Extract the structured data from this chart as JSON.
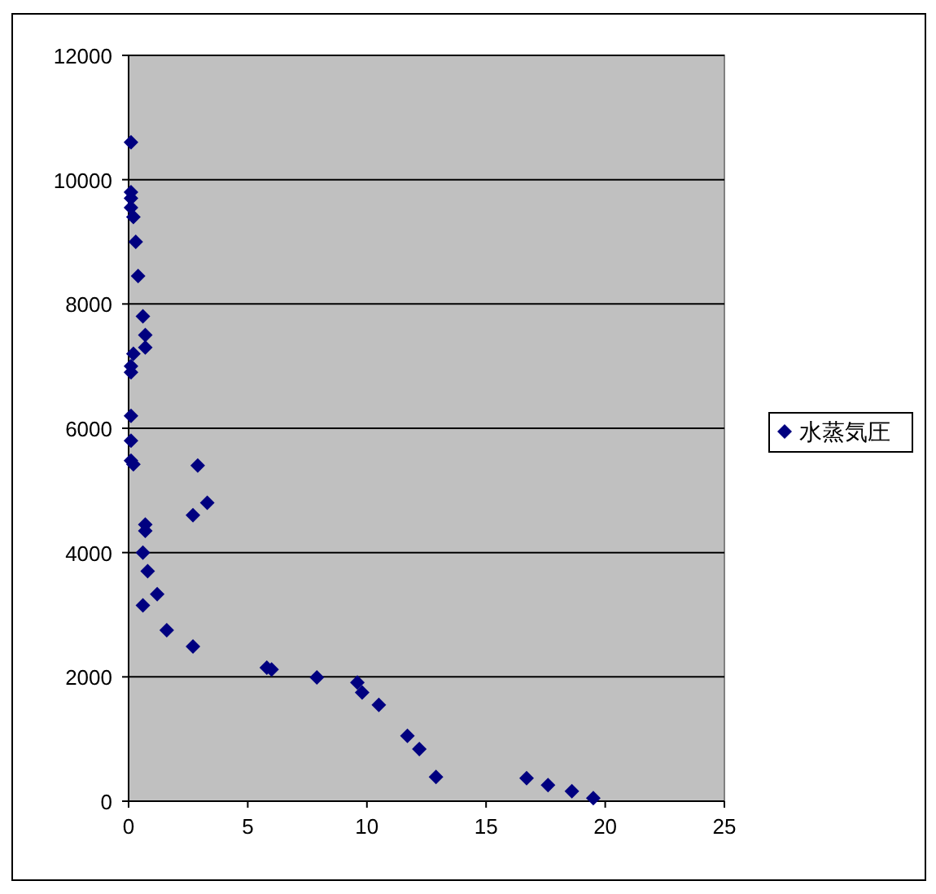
{
  "chart_data": {
    "type": "scatter",
    "marker": "diamond",
    "grid": "y",
    "legend": "right",
    "xlim": [
      0,
      25
    ],
    "ylim": [
      0,
      12000
    ],
    "xticks": [
      0,
      5,
      10,
      15,
      20,
      25
    ],
    "yticks": [
      0,
      2000,
      4000,
      6000,
      8000,
      10000,
      12000
    ],
    "series": [
      {
        "name": "水蒸気圧",
        "color": "#000080",
        "x": [
          0.1,
          0.1,
          0.1,
          0.1,
          0.2,
          0.3,
          0.4,
          0.6,
          0.7,
          0.7,
          0.2,
          0.1,
          0.1,
          0.1,
          0.1,
          0.1,
          0.2,
          2.9,
          3.3,
          2.7,
          0.7,
          0.7,
          0.6,
          0.8,
          1.2,
          0.6,
          1.6,
          2.7,
          5.8,
          6.0,
          7.9,
          9.6,
          9.8,
          10.5,
          11.7,
          12.2,
          12.9,
          16.7,
          17.6,
          18.6,
          19.5
        ],
        "values": [
          10600,
          9800,
          9700,
          9550,
          9400,
          9000,
          8450,
          7800,
          7500,
          7300,
          7200,
          7000,
          6900,
          6200,
          5800,
          5480,
          5420,
          5400,
          4800,
          4600,
          4450,
          4350,
          4000,
          3700,
          3330,
          3150,
          2750,
          2490,
          2150,
          2120,
          1990,
          1910,
          1750,
          1550,
          1050,
          840,
          390,
          370,
          260,
          160,
          50
        ]
      }
    ]
  }
}
